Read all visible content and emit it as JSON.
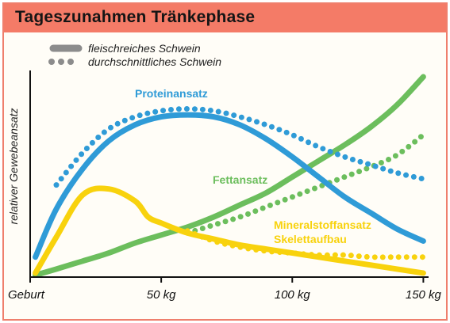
{
  "chart_data": {
    "type": "line",
    "title": "Tageszunahmen Tränkephase",
    "ylabel": "relativer Gewebeansatz",
    "x_tick_labels": [
      "Geburt",
      "50 kg",
      "100 kg",
      "150 kg"
    ],
    "x_ticks": [
      0,
      50,
      100,
      150
    ],
    "xlim": [
      0,
      152
    ],
    "ylim": [
      0,
      1
    ],
    "legend": {
      "placement": "top-left",
      "entries": [
        {
          "style": "solid",
          "label": "fleischreiches Schwein"
        },
        {
          "style": "dotted",
          "label": "durchschnittliches Schwein"
        }
      ]
    },
    "groups": [
      {
        "label": "Proteinansatz",
        "color": "#2f9bd7",
        "series": [
          {
            "style": "solid",
            "x": [
              2,
              10,
              20,
              30,
              40,
              50,
              60,
              70,
              80,
              90,
              100,
              110,
              120,
              130,
              140,
              150
            ],
            "y": [
              0.1,
              0.34,
              0.54,
              0.68,
              0.76,
              0.8,
              0.81,
              0.8,
              0.76,
              0.69,
              0.6,
              0.5,
              0.4,
              0.32,
              0.24,
              0.18
            ]
          },
          {
            "style": "dotted",
            "x": [
              10,
              20,
              30,
              40,
              50,
              60,
              70,
              80,
              90,
              100,
              110,
              120,
              130,
              140,
              150
            ],
            "y": [
              0.46,
              0.62,
              0.74,
              0.8,
              0.83,
              0.84,
              0.83,
              0.8,
              0.76,
              0.71,
              0.65,
              0.6,
              0.56,
              0.52,
              0.49
            ]
          }
        ]
      },
      {
        "label": "Fettansatz",
        "color": "#6cbe5d",
        "series": [
          {
            "style": "solid",
            "x": [
              2,
              10,
              20,
              30,
              40,
              50,
              60,
              70,
              80,
              90,
              100,
              110,
              120,
              130,
              140,
              150
            ],
            "y": [
              0.01,
              0.04,
              0.08,
              0.12,
              0.17,
              0.21,
              0.25,
              0.3,
              0.36,
              0.42,
              0.5,
              0.58,
              0.66,
              0.75,
              0.86,
              1.0
            ]
          },
          {
            "style": "dotted",
            "x": [
              60,
              70,
              80,
              90,
              100,
              110,
              120,
              130,
              140,
              150
            ],
            "y": [
              0.22,
              0.26,
              0.3,
              0.35,
              0.4,
              0.45,
              0.5,
              0.55,
              0.61,
              0.71
            ]
          }
        ]
      },
      {
        "label": "Mineralstoffansatz Skelettaufbau",
        "label_lines": [
          "Mineralstoffansatz",
          "Skelettaufbau"
        ],
        "color": "#f8d20d",
        "series": [
          {
            "style": "solid",
            "x": [
              2,
              10,
              20,
              30,
              40,
              45,
              50,
              60,
              70,
              80,
              90,
              100,
              110,
              120,
              130,
              140,
              150
            ],
            "y": [
              0.02,
              0.2,
              0.41,
              0.44,
              0.38,
              0.3,
              0.27,
              0.22,
              0.19,
              0.16,
              0.14,
              0.12,
              0.1,
              0.08,
              0.06,
              0.04,
              0.02
            ]
          },
          {
            "style": "dotted",
            "x": [
              60,
              70,
              80,
              90,
              100,
              110,
              120,
              130,
              140,
              150
            ],
            "y": [
              0.23,
              0.18,
              0.15,
              0.13,
              0.12,
              0.11,
              0.11,
              0.1,
              0.1,
              0.1
            ]
          }
        ]
      }
    ]
  }
}
